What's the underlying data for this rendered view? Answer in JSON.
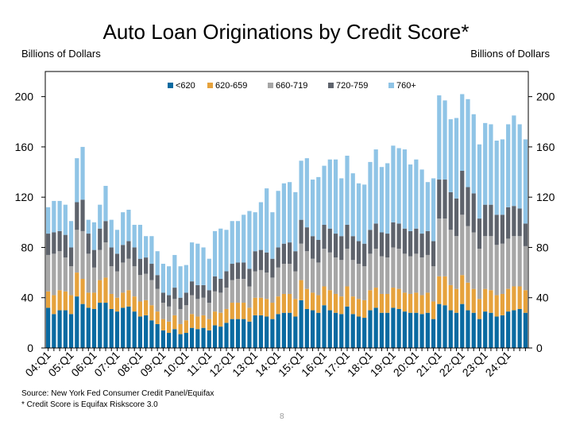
{
  "title": "Auto Loan Originations by Credit Score*",
  "unit_left": "Billions of Dollars",
  "unit_right": "Billions of Dollars",
  "footnotes": {
    "source": "Source: New York Fed Consumer Credit Panel/Equifax",
    "note": "* Credit Score is Equifax Riskscore 3.0"
  },
  "page_number": "8",
  "chart_data": {
    "type": "bar",
    "stacked": true,
    "ylim": [
      0,
      220
    ],
    "yticks": [
      0,
      40,
      80,
      120,
      160,
      200
    ],
    "legend_position": "top-center",
    "grid": false,
    "xtick_labels": [
      "04:Q1",
      "05:Q1",
      "06:Q1",
      "07:Q1",
      "08:Q1",
      "09:Q1",
      "10:Q1",
      "11:Q1",
      "12:Q1",
      "13:Q1",
      "14:Q1",
      "15:Q1",
      "16:Q1",
      "17:Q1",
      "18:Q1",
      "19:Q1",
      "20:Q1",
      "21:Q1",
      "22:Q1",
      "23:Q1",
      "24:Q1"
    ],
    "categories": [
      "04:Q1",
      "04:Q2",
      "04:Q3",
      "04:Q4",
      "05:Q1",
      "05:Q2",
      "05:Q3",
      "05:Q4",
      "06:Q1",
      "06:Q2",
      "06:Q3",
      "06:Q4",
      "07:Q1",
      "07:Q2",
      "07:Q3",
      "07:Q4",
      "08:Q1",
      "08:Q2",
      "08:Q3",
      "08:Q4",
      "09:Q1",
      "09:Q2",
      "09:Q3",
      "09:Q4",
      "10:Q1",
      "10:Q2",
      "10:Q3",
      "10:Q4",
      "11:Q1",
      "11:Q2",
      "11:Q3",
      "11:Q4",
      "12:Q1",
      "12:Q2",
      "12:Q3",
      "12:Q4",
      "13:Q1",
      "13:Q2",
      "13:Q3",
      "13:Q4",
      "14:Q1",
      "14:Q2",
      "14:Q3",
      "14:Q4",
      "15:Q1",
      "15:Q2",
      "15:Q3",
      "15:Q4",
      "16:Q1",
      "16:Q2",
      "16:Q3",
      "16:Q4",
      "17:Q1",
      "17:Q2",
      "17:Q3",
      "17:Q4",
      "18:Q1",
      "18:Q2",
      "18:Q3",
      "18:Q4",
      "19:Q1",
      "19:Q2",
      "19:Q3",
      "19:Q4",
      "20:Q1",
      "20:Q2",
      "20:Q3",
      "20:Q4",
      "21:Q1",
      "21:Q2",
      "21:Q3",
      "21:Q4",
      "22:Q1",
      "22:Q2",
      "22:Q3",
      "22:Q4",
      "23:Q1",
      "23:Q2",
      "23:Q3",
      "23:Q4",
      "24:Q1",
      "24:Q2",
      "24:Q3",
      "24:Q4"
    ],
    "series": [
      {
        "name": "<620",
        "color": "#0a6aa1",
        "values": [
          32,
          27,
          30,
          30,
          27,
          41,
          35,
          32,
          31,
          36,
          36,
          31,
          29,
          32,
          33,
          29,
          25,
          26,
          22,
          19,
          14,
          12,
          15,
          11,
          12,
          16,
          15,
          16,
          14,
          18,
          17,
          20,
          23,
          23,
          23,
          21,
          26,
          26,
          25,
          23,
          27,
          28,
          28,
          25,
          38,
          31,
          30,
          28,
          34,
          30,
          28,
          27,
          33,
          27,
          25,
          24,
          30,
          32,
          28,
          28,
          32,
          31,
          29,
          28,
          28,
          27,
          28,
          23,
          35,
          34,
          30,
          28,
          35,
          30,
          28,
          23,
          29,
          28,
          25,
          26,
          29,
          30,
          31,
          28
        ]
      },
      {
        "name": "620-659",
        "color": "#e6a23c",
        "values": [
          13,
          15,
          16,
          15,
          15,
          19,
          20,
          12,
          13,
          18,
          20,
          12,
          11,
          12,
          13,
          12,
          12,
          12,
          12,
          10,
          9,
          9,
          11,
          8,
          10,
          11,
          10,
          10,
          9,
          11,
          11,
          11,
          13,
          13,
          13,
          11,
          14,
          14,
          14,
          13,
          14,
          15,
          15,
          14,
          16,
          16,
          14,
          14,
          15,
          16,
          15,
          14,
          16,
          14,
          14,
          14,
          16,
          16,
          15,
          15,
          16,
          16,
          15,
          15,
          16,
          15,
          16,
          14,
          22,
          23,
          20,
          19,
          23,
          22,
          19,
          16,
          18,
          18,
          17,
          17,
          18,
          19,
          18,
          18
        ]
      },
      {
        "name": "660-719",
        "color": "#a6a6a6",
        "values": [
          29,
          33,
          31,
          27,
          23,
          34,
          38,
          31,
          20,
          24,
          28,
          22,
          21,
          24,
          25,
          24,
          21,
          21,
          20,
          18,
          13,
          12,
          13,
          12,
          12,
          15,
          14,
          14,
          13,
          16,
          16,
          17,
          18,
          19,
          19,
          17,
          21,
          22,
          21,
          20,
          23,
          24,
          24,
          22,
          29,
          30,
          27,
          26,
          30,
          30,
          29,
          29,
          30,
          29,
          28,
          27,
          29,
          31,
          30,
          29,
          32,
          32,
          31,
          30,
          31,
          30,
          30,
          28,
          46,
          46,
          44,
          42,
          48,
          45,
          45,
          40,
          42,
          43,
          40,
          40,
          40,
          40,
          40,
          35
        ]
      },
      {
        "name": "720-759",
        "color": "#5e636c",
        "values": [
          17,
          17,
          16,
          18,
          15,
          22,
          25,
          16,
          14,
          17,
          17,
          15,
          14,
          14,
          14,
          15,
          13,
          13,
          13,
          11,
          8,
          9,
          9,
          9,
          10,
          11,
          11,
          10,
          10,
          12,
          11,
          13,
          13,
          13,
          13,
          14,
          16,
          16,
          16,
          15,
          16,
          16,
          17,
          16,
          19,
          19,
          18,
          18,
          19,
          19,
          19,
          19,
          19,
          19,
          18,
          18,
          19,
          20,
          19,
          19,
          20,
          20,
          20,
          20,
          20,
          19,
          19,
          20,
          31,
          31,
          30,
          30,
          35,
          31,
          31,
          24,
          25,
          25,
          24,
          23,
          25,
          24,
          22,
          18
        ]
      },
      {
        "name": "760+",
        "color": "#8fc4e6",
        "values": [
          21,
          25,
          24,
          24,
          21,
          35,
          42,
          11,
          22,
          19,
          28,
          22,
          19,
          26,
          25,
          18,
          27,
          17,
          22,
          19,
          23,
          23,
          26,
          25,
          22,
          31,
          33,
          30,
          25,
          36,
          40,
          33,
          34,
          33,
          38,
          46,
          31,
          38,
          51,
          37,
          45,
          48,
          48,
          47,
          47,
          55,
          45,
          50,
          47,
          55,
          59,
          46,
          55,
          50,
          46,
          47,
          54,
          59,
          52,
          56,
          61,
          60,
          63,
          53,
          55,
          51,
          39,
          50,
          67,
          63,
          58,
          64,
          61,
          70,
          63,
          59,
          65,
          64,
          59,
          60,
          66,
          72,
          67,
          67
        ]
      }
    ]
  }
}
